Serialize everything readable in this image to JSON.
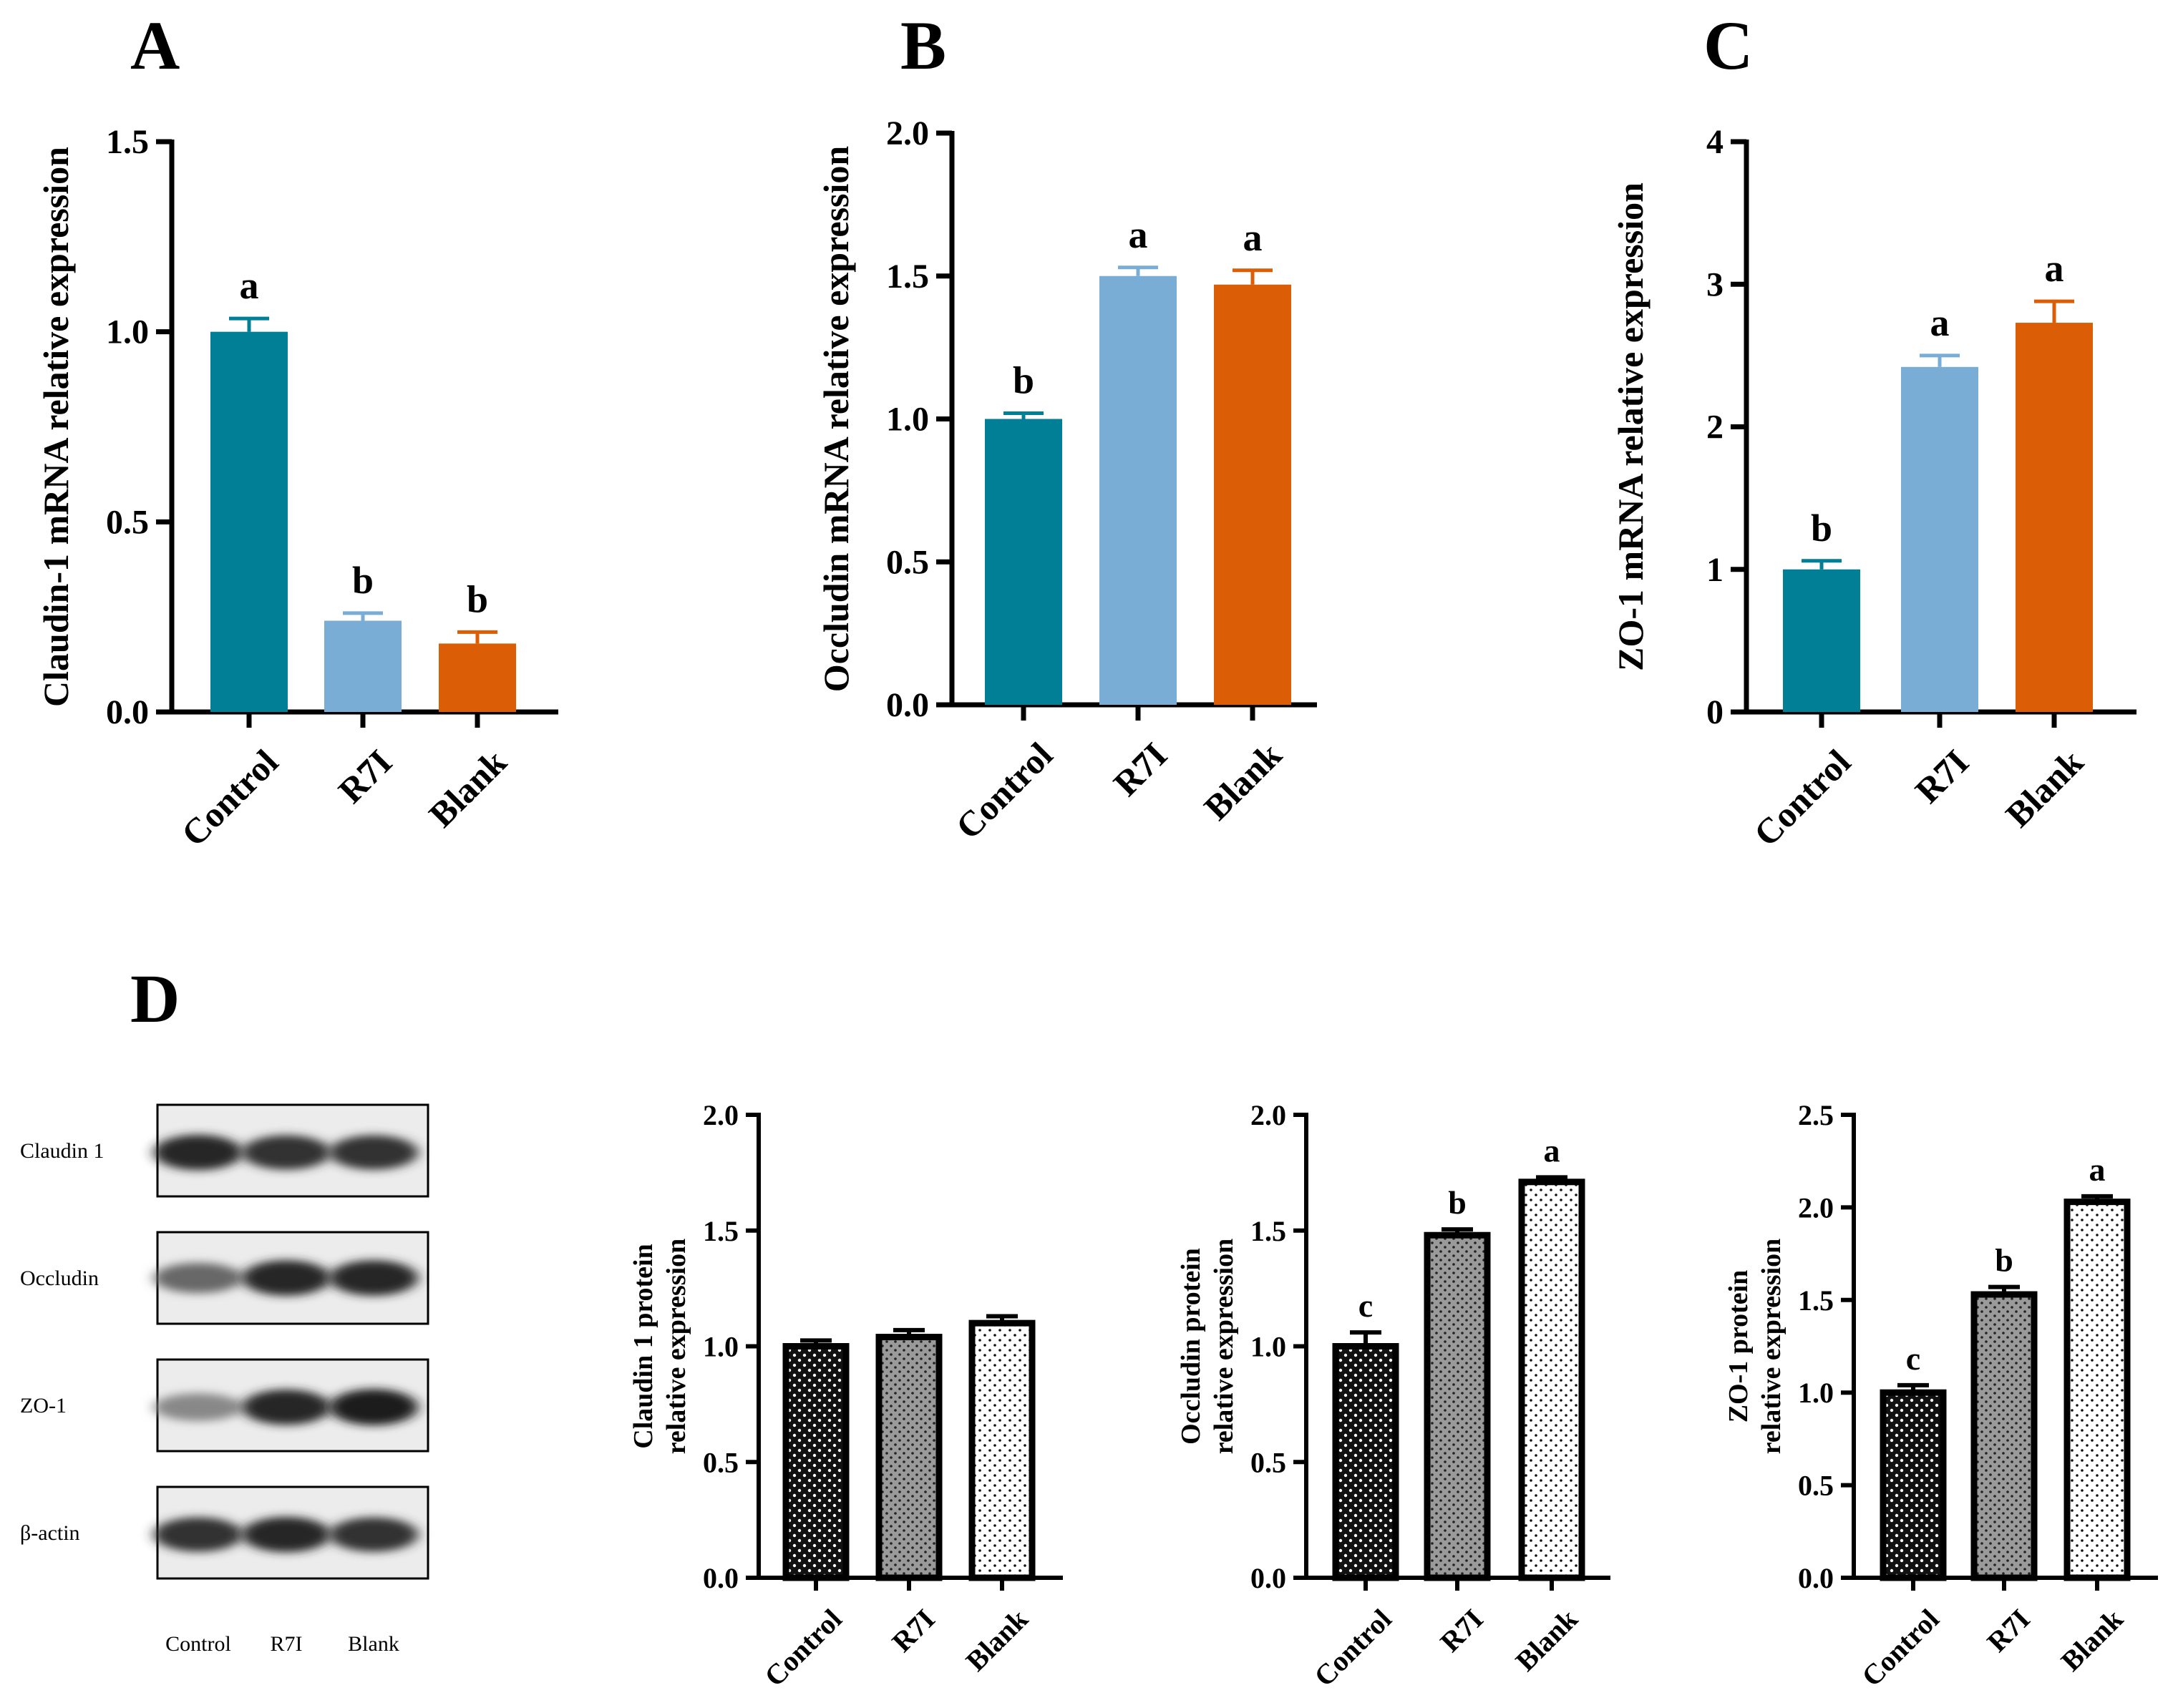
{
  "panel_labels": {
    "A": "A",
    "B": "B",
    "C": "C",
    "D": "D"
  },
  "colors": {
    "control": "#007f96",
    "r7i": "#7aadd6",
    "blank": "#db5e06",
    "axis": "#000000"
  },
  "chart_data": [
    {
      "id": "A",
      "type": "bar",
      "title": "",
      "ylabel": "Claudin-1 mRNA relative expression",
      "categories": [
        "Control",
        "R7I",
        "Blank"
      ],
      "values": [
        1.0,
        0.24,
        0.18
      ],
      "errors": [
        0.035,
        0.02,
        0.03
      ],
      "significance": [
        "a",
        "b",
        "b"
      ],
      "ylim": [
        0,
        1.5
      ],
      "yticks": [
        0.0,
        0.5,
        1.0,
        1.5
      ],
      "ytick_labels": [
        "0.0",
        "0.5",
        "1.0",
        "1.5"
      ]
    },
    {
      "id": "B",
      "type": "bar",
      "title": "",
      "ylabel": "Occludin mRNA relative expression",
      "categories": [
        "Control",
        "R7I",
        "Blank"
      ],
      "values": [
        1.0,
        1.5,
        1.47
      ],
      "errors": [
        0.02,
        0.03,
        0.05
      ],
      "significance": [
        "b",
        "a",
        "a"
      ],
      "ylim": [
        0,
        2.0
      ],
      "yticks": [
        0.0,
        0.5,
        1.0,
        1.5,
        2.0
      ],
      "ytick_labels": [
        "0.0",
        "0.5",
        "1.0",
        "1.5",
        "2.0"
      ]
    },
    {
      "id": "C",
      "type": "bar",
      "title": "",
      "ylabel": "ZO-1 mRNA relative expression",
      "categories": [
        "Control",
        "R7I",
        "Blank"
      ],
      "values": [
        1.0,
        2.42,
        2.73
      ],
      "errors": [
        0.06,
        0.08,
        0.15
      ],
      "significance": [
        "b",
        "a",
        "a"
      ],
      "ylim": [
        0,
        4
      ],
      "yticks": [
        0,
        1,
        2,
        3,
        4
      ],
      "ytick_labels": [
        "0",
        "1",
        "2",
        "3",
        "4"
      ]
    },
    {
      "id": "D1",
      "type": "bar",
      "title": "",
      "ylabel_lines": [
        "Claudin 1 protein",
        "relative expression"
      ],
      "categories": [
        "Control",
        "R7I",
        "Blank"
      ],
      "values": [
        1.0,
        1.04,
        1.1
      ],
      "errors": [
        0.025,
        0.03,
        0.03
      ],
      "significance": [
        "",
        "",
        ""
      ],
      "ylim": [
        0,
        2.0
      ],
      "yticks": [
        0.0,
        0.5,
        1.0,
        1.5,
        2.0
      ],
      "ytick_labels": [
        "0.0",
        "0.5",
        "1.0",
        "1.5",
        "2.0"
      ]
    },
    {
      "id": "D2",
      "type": "bar",
      "title": "",
      "ylabel_lines": [
        "Occludin protein",
        "relative expression"
      ],
      "categories": [
        "Control",
        "R7I",
        "Blank"
      ],
      "values": [
        1.0,
        1.48,
        1.71
      ],
      "errors": [
        0.06,
        0.025,
        0.02
      ],
      "significance": [
        "c",
        "b",
        "a"
      ],
      "ylim": [
        0,
        2.0
      ],
      "yticks": [
        0.0,
        0.5,
        1.0,
        1.5,
        2.0
      ],
      "ytick_labels": [
        "0.0",
        "0.5",
        "1.0",
        "1.5",
        "2.0"
      ]
    },
    {
      "id": "D3",
      "type": "bar",
      "title": "",
      "ylabel_lines": [
        "ZO-1 protein",
        "relative expression"
      ],
      "categories": [
        "Control",
        "R7I",
        "Blank"
      ],
      "values": [
        1.0,
        1.53,
        2.03
      ],
      "errors": [
        0.04,
        0.04,
        0.03
      ],
      "significance": [
        "c",
        "b",
        "a"
      ],
      "ylim": [
        0,
        2.5
      ],
      "yticks": [
        0.0,
        0.5,
        1.0,
        1.5,
        2.0,
        2.5
      ],
      "ytick_labels": [
        "0.0",
        "0.5",
        "1.0",
        "1.5",
        "2.0",
        "2.5"
      ]
    }
  ],
  "western_blot": {
    "rows": [
      "Claudin 1",
      "Occludin",
      "ZO-1",
      "β-actin"
    ],
    "lanes": [
      "Control",
      "R7I",
      "Blank"
    ],
    "band_intensity": [
      [
        0.9,
        0.85,
        0.85
      ],
      [
        0.6,
        0.9,
        0.9
      ],
      [
        0.45,
        0.9,
        0.95
      ],
      [
        0.85,
        0.9,
        0.85
      ]
    ]
  }
}
